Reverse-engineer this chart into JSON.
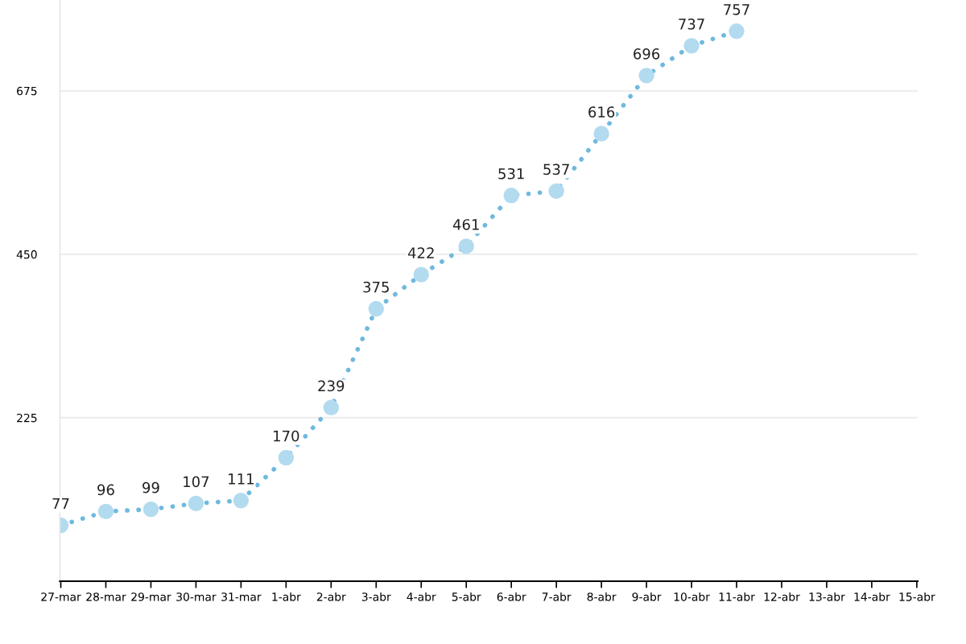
{
  "chart_data": {
    "type": "line",
    "categories": [
      "27-mar",
      "28-mar",
      "29-mar",
      "30-mar",
      "31-mar",
      "1-abr",
      "2-abr",
      "3-abr",
      "4-abr",
      "5-abr",
      "6-abr",
      "7-abr",
      "8-abr",
      "9-abr",
      "10-abr",
      "11-abr",
      "12-abr",
      "13-abr",
      "14-abr",
      "15-abr"
    ],
    "series": [
      {
        "color": "#6fb9de",
        "values": [
          77,
          96,
          99,
          107,
          111,
          170,
          239,
          375,
          422,
          461,
          531,
          537,
          616,
          696,
          737,
          757,
          null,
          null,
          null,
          null
        ]
      }
    ],
    "ylim": [
      0,
      800
    ],
    "yticks": [
      225,
      450,
      675
    ],
    "grid": "y",
    "marker": "circle",
    "line_style": "dotted",
    "data_labels": true
  }
}
